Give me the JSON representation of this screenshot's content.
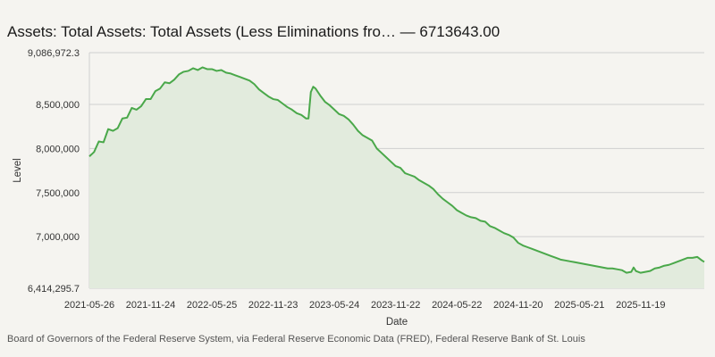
{
  "title": "Assets: Total Assets: Total Assets (Less Eliminations fro… — 6713643.00",
  "source": "Board of Governors of the Federal Reserve System, via Federal Reserve Economic Data (FRED), Federal Reserve Bank of St. Louis",
  "chart_data": {
    "type": "area",
    "title": "Assets: Total Assets: Total Assets (Less Eliminations fro… — 6713643.00",
    "xlabel": "Date",
    "ylabel": "Level",
    "ylim": [
      6414295.7,
      9086972.3
    ],
    "xlim": [
      "2021-05-26",
      "2026-05-27"
    ],
    "grid": true,
    "legend": "none",
    "line_color": "#4aa84a",
    "fill_color": "#e2ebdd",
    "y_ticks": [
      {
        "value": 6414295.7,
        "label": "6,414,295.7"
      },
      {
        "value": 7000000,
        "label": "7,000,000"
      },
      {
        "value": 7500000,
        "label": "7,500,000"
      },
      {
        "value": 8000000,
        "label": "8,000,000"
      },
      {
        "value": 8500000,
        "label": "8,500,000"
      },
      {
        "value": 9086972.3,
        "label": "9,086,972.3"
      }
    ],
    "x_ticks": [
      "2021-05-26",
      "2021-11-24",
      "2022-05-25",
      "2022-11-23",
      "2023-05-24",
      "2023-11-22",
      "2024-05-22",
      "2024-11-20",
      "2025-05-21",
      "2025-11-19"
    ],
    "series": [
      {
        "points": [
          [
            "2021-05-26",
            7910000
          ],
          [
            "2021-06-09",
            7960000
          ],
          [
            "2021-06-23",
            8080000
          ],
          [
            "2021-07-07",
            8070000
          ],
          [
            "2021-07-21",
            8220000
          ],
          [
            "2021-08-04",
            8200000
          ],
          [
            "2021-08-18",
            8230000
          ],
          [
            "2021-09-01",
            8340000
          ],
          [
            "2021-09-15",
            8350000
          ],
          [
            "2021-09-29",
            8460000
          ],
          [
            "2021-10-13",
            8440000
          ],
          [
            "2021-10-27",
            8480000
          ],
          [
            "2021-11-10",
            8560000
          ],
          [
            "2021-11-24",
            8560000
          ],
          [
            "2021-12-08",
            8650000
          ],
          [
            "2021-12-22",
            8680000
          ],
          [
            "2022-01-05",
            8750000
          ],
          [
            "2022-01-19",
            8740000
          ],
          [
            "2022-02-02",
            8780000
          ],
          [
            "2022-02-16",
            8840000
          ],
          [
            "2022-03-02",
            8870000
          ],
          [
            "2022-03-16",
            8880000
          ],
          [
            "2022-03-30",
            8910000
          ],
          [
            "2022-04-13",
            8890000
          ],
          [
            "2022-04-27",
            8920000
          ],
          [
            "2022-05-11",
            8900000
          ],
          [
            "2022-05-25",
            8900000
          ],
          [
            "2022-06-08",
            8880000
          ],
          [
            "2022-06-22",
            8890000
          ],
          [
            "2022-07-06",
            8860000
          ],
          [
            "2022-07-20",
            8850000
          ],
          [
            "2022-08-03",
            8830000
          ],
          [
            "2022-08-17",
            8810000
          ],
          [
            "2022-08-31",
            8790000
          ],
          [
            "2022-09-14",
            8770000
          ],
          [
            "2022-09-28",
            8730000
          ],
          [
            "2022-10-12",
            8670000
          ],
          [
            "2022-10-26",
            8630000
          ],
          [
            "2022-11-09",
            8590000
          ],
          [
            "2022-11-23",
            8560000
          ],
          [
            "2022-12-07",
            8550000
          ],
          [
            "2022-12-21",
            8510000
          ],
          [
            "2023-01-04",
            8470000
          ],
          [
            "2023-01-18",
            8440000
          ],
          [
            "2023-02-01",
            8400000
          ],
          [
            "2023-02-15",
            8380000
          ],
          [
            "2023-03-01",
            8340000
          ],
          [
            "2023-03-08",
            8340000
          ],
          [
            "2023-03-15",
            8640000
          ],
          [
            "2023-03-22",
            8700000
          ],
          [
            "2023-03-29",
            8680000
          ],
          [
            "2023-04-12",
            8600000
          ],
          [
            "2023-04-26",
            8530000
          ],
          [
            "2023-05-10",
            8490000
          ],
          [
            "2023-05-24",
            8440000
          ],
          [
            "2023-06-07",
            8390000
          ],
          [
            "2023-06-21",
            8370000
          ],
          [
            "2023-07-05",
            8330000
          ],
          [
            "2023-07-19",
            8270000
          ],
          [
            "2023-08-02",
            8200000
          ],
          [
            "2023-08-16",
            8150000
          ],
          [
            "2023-08-30",
            8120000
          ],
          [
            "2023-09-13",
            8090000
          ],
          [
            "2023-09-27",
            8000000
          ],
          [
            "2023-10-11",
            7950000
          ],
          [
            "2023-10-25",
            7900000
          ],
          [
            "2023-11-08",
            7850000
          ],
          [
            "2023-11-22",
            7800000
          ],
          [
            "2023-12-06",
            7780000
          ],
          [
            "2023-12-20",
            7720000
          ],
          [
            "2024-01-03",
            7700000
          ],
          [
            "2024-01-17",
            7680000
          ],
          [
            "2024-01-31",
            7640000
          ],
          [
            "2024-02-14",
            7610000
          ],
          [
            "2024-02-28",
            7580000
          ],
          [
            "2024-03-13",
            7540000
          ],
          [
            "2024-03-27",
            7480000
          ],
          [
            "2024-04-10",
            7430000
          ],
          [
            "2024-04-24",
            7390000
          ],
          [
            "2024-05-08",
            7350000
          ],
          [
            "2024-05-22",
            7300000
          ],
          [
            "2024-06-05",
            7270000
          ],
          [
            "2024-06-19",
            7240000
          ],
          [
            "2024-07-03",
            7220000
          ],
          [
            "2024-07-17",
            7210000
          ],
          [
            "2024-07-31",
            7180000
          ],
          [
            "2024-08-14",
            7170000
          ],
          [
            "2024-08-28",
            7120000
          ],
          [
            "2024-09-11",
            7100000
          ],
          [
            "2024-09-25",
            7070000
          ],
          [
            "2024-10-09",
            7040000
          ],
          [
            "2024-10-23",
            7020000
          ],
          [
            "2024-11-06",
            6990000
          ],
          [
            "2024-11-20",
            6930000
          ],
          [
            "2024-12-04",
            6900000
          ],
          [
            "2024-12-18",
            6880000
          ],
          [
            "2025-01-01",
            6860000
          ],
          [
            "2025-01-15",
            6840000
          ],
          [
            "2025-01-29",
            6820000
          ],
          [
            "2025-02-12",
            6800000
          ],
          [
            "2025-02-26",
            6780000
          ],
          [
            "2025-03-12",
            6760000
          ],
          [
            "2025-03-26",
            6740000
          ],
          [
            "2025-04-09",
            6730000
          ],
          [
            "2025-04-23",
            6720000
          ],
          [
            "2025-05-07",
            6710000
          ],
          [
            "2025-05-21",
            6700000
          ],
          [
            "2025-06-04",
            6690000
          ],
          [
            "2025-06-18",
            6680000
          ],
          [
            "2025-07-02",
            6670000
          ],
          [
            "2025-07-16",
            6660000
          ],
          [
            "2025-07-30",
            6650000
          ],
          [
            "2025-08-13",
            6640000
          ],
          [
            "2025-08-27",
            6640000
          ],
          [
            "2025-09-10",
            6630000
          ],
          [
            "2025-09-24",
            6620000
          ],
          [
            "2025-10-08",
            6590000
          ],
          [
            "2025-10-22",
            6600000
          ],
          [
            "2025-10-29",
            6650000
          ],
          [
            "2025-11-05",
            6610000
          ],
          [
            "2025-11-19",
            6590000
          ],
          [
            "2025-12-03",
            6600000
          ],
          [
            "2025-12-17",
            6610000
          ],
          [
            "2025-12-31",
            6640000
          ],
          [
            "2026-01-14",
            6650000
          ],
          [
            "2026-01-28",
            6670000
          ],
          [
            "2026-02-11",
            6680000
          ],
          [
            "2026-02-25",
            6700000
          ],
          [
            "2026-03-11",
            6720000
          ],
          [
            "2026-03-25",
            6740000
          ],
          [
            "2026-04-08",
            6760000
          ],
          [
            "2026-04-22",
            6760000
          ],
          [
            "2026-05-06",
            6770000
          ],
          [
            "2026-05-20",
            6730000
          ],
          [
            "2026-05-27",
            6713643
          ]
        ]
      }
    ]
  }
}
